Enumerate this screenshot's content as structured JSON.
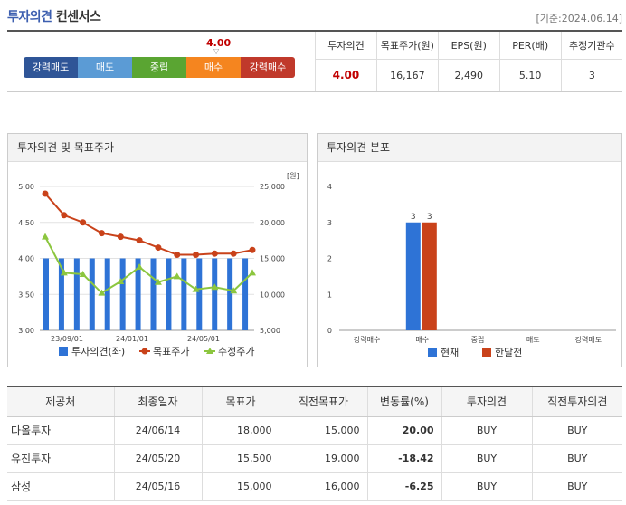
{
  "header": {
    "title_part1": "투자의견",
    "title_part2": "컨센서스",
    "date": "[기준:2024.06.14]"
  },
  "gauge": {
    "value": "4.00",
    "marker": "▽",
    "labels": [
      "강력매도",
      "매도",
      "중립",
      "매수",
      "강력매수"
    ]
  },
  "consensus_table": {
    "headers": [
      "투자의견",
      "목표주가(원)",
      "EPS(원)",
      "PER(배)",
      "추정기관수"
    ],
    "values": [
      "4.00",
      "16,167",
      "2,490",
      "5.10",
      "3"
    ]
  },
  "left_chart": {
    "title": "투자의견 및 목표주가",
    "unit": "[원]",
    "legend": [
      "투자의견(좌)",
      "목표주가",
      "수정주가"
    ],
    "colors": {
      "bar": "#2e73d6",
      "target": "#c9421a",
      "price": "#8cc63f"
    }
  },
  "right_chart": {
    "title": "투자의견 분포",
    "legend": [
      "현재",
      "한달전"
    ],
    "colors": {
      "current": "#2e73d6",
      "prev": "#c9421a"
    }
  },
  "chart_data": [
    {
      "type": "bar+line",
      "title": "투자의견 및 목표주가",
      "x_ticks": [
        "23/09/01",
        "24/01/01",
        "24/05/01"
      ],
      "y_left_ticks": [
        "5.00",
        "4.50",
        "4.00",
        "3.50",
        "3.00"
      ],
      "y_left_range": [
        3.0,
        5.0
      ],
      "y_right_ticks": [
        "25,000",
        "20,000",
        "15,000",
        "10,000",
        "5,000"
      ],
      "y_right_range": [
        5000,
        25000
      ],
      "series": [
        {
          "name": "투자의견(좌)",
          "type": "bar",
          "axis": "left",
          "values": [
            4,
            4,
            4,
            4,
            4,
            4,
            4,
            4,
            4,
            4,
            4,
            4,
            4,
            4
          ]
        },
        {
          "name": "목표주가",
          "type": "line",
          "axis": "right",
          "values": [
            24000,
            21000,
            20000,
            18500,
            18000,
            17500,
            16500,
            15500,
            15500,
            15667,
            15667,
            16167
          ]
        },
        {
          "name": "수정주가",
          "type": "line",
          "axis": "right",
          "values": [
            18000,
            13000,
            12800,
            10200,
            11800,
            13800,
            11700,
            12500,
            10700,
            11000,
            10500,
            13000
          ]
        }
      ]
    },
    {
      "type": "bar",
      "title": "투자의견 분포",
      "categories": [
        "강력매수",
        "매수",
        "중립",
        "매도",
        "강력매도"
      ],
      "ylim": [
        0,
        4
      ],
      "y_ticks": [
        "4",
        "3",
        "2",
        "1",
        "0"
      ],
      "series": [
        {
          "name": "현재",
          "values": [
            0,
            3,
            0,
            0,
            0
          ]
        },
        {
          "name": "한달전",
          "values": [
            0,
            3,
            0,
            0,
            0
          ]
        }
      ]
    }
  ],
  "report_table": {
    "headers": [
      "제공처",
      "최종일자",
      "목표가",
      "직전목표가",
      "변동률(%)",
      "투자의견",
      "직전투자의견"
    ],
    "rows": [
      [
        "다올투자",
        "24/06/14",
        "18,000",
        "15,000",
        "20.00",
        "BUY",
        "BUY"
      ],
      [
        "유진투자",
        "24/05/20",
        "15,500",
        "19,000",
        "-18.42",
        "BUY",
        "BUY"
      ],
      [
        "삼성",
        "24/05/16",
        "15,000",
        "16,000",
        "-6.25",
        "BUY",
        "BUY"
      ]
    ]
  }
}
